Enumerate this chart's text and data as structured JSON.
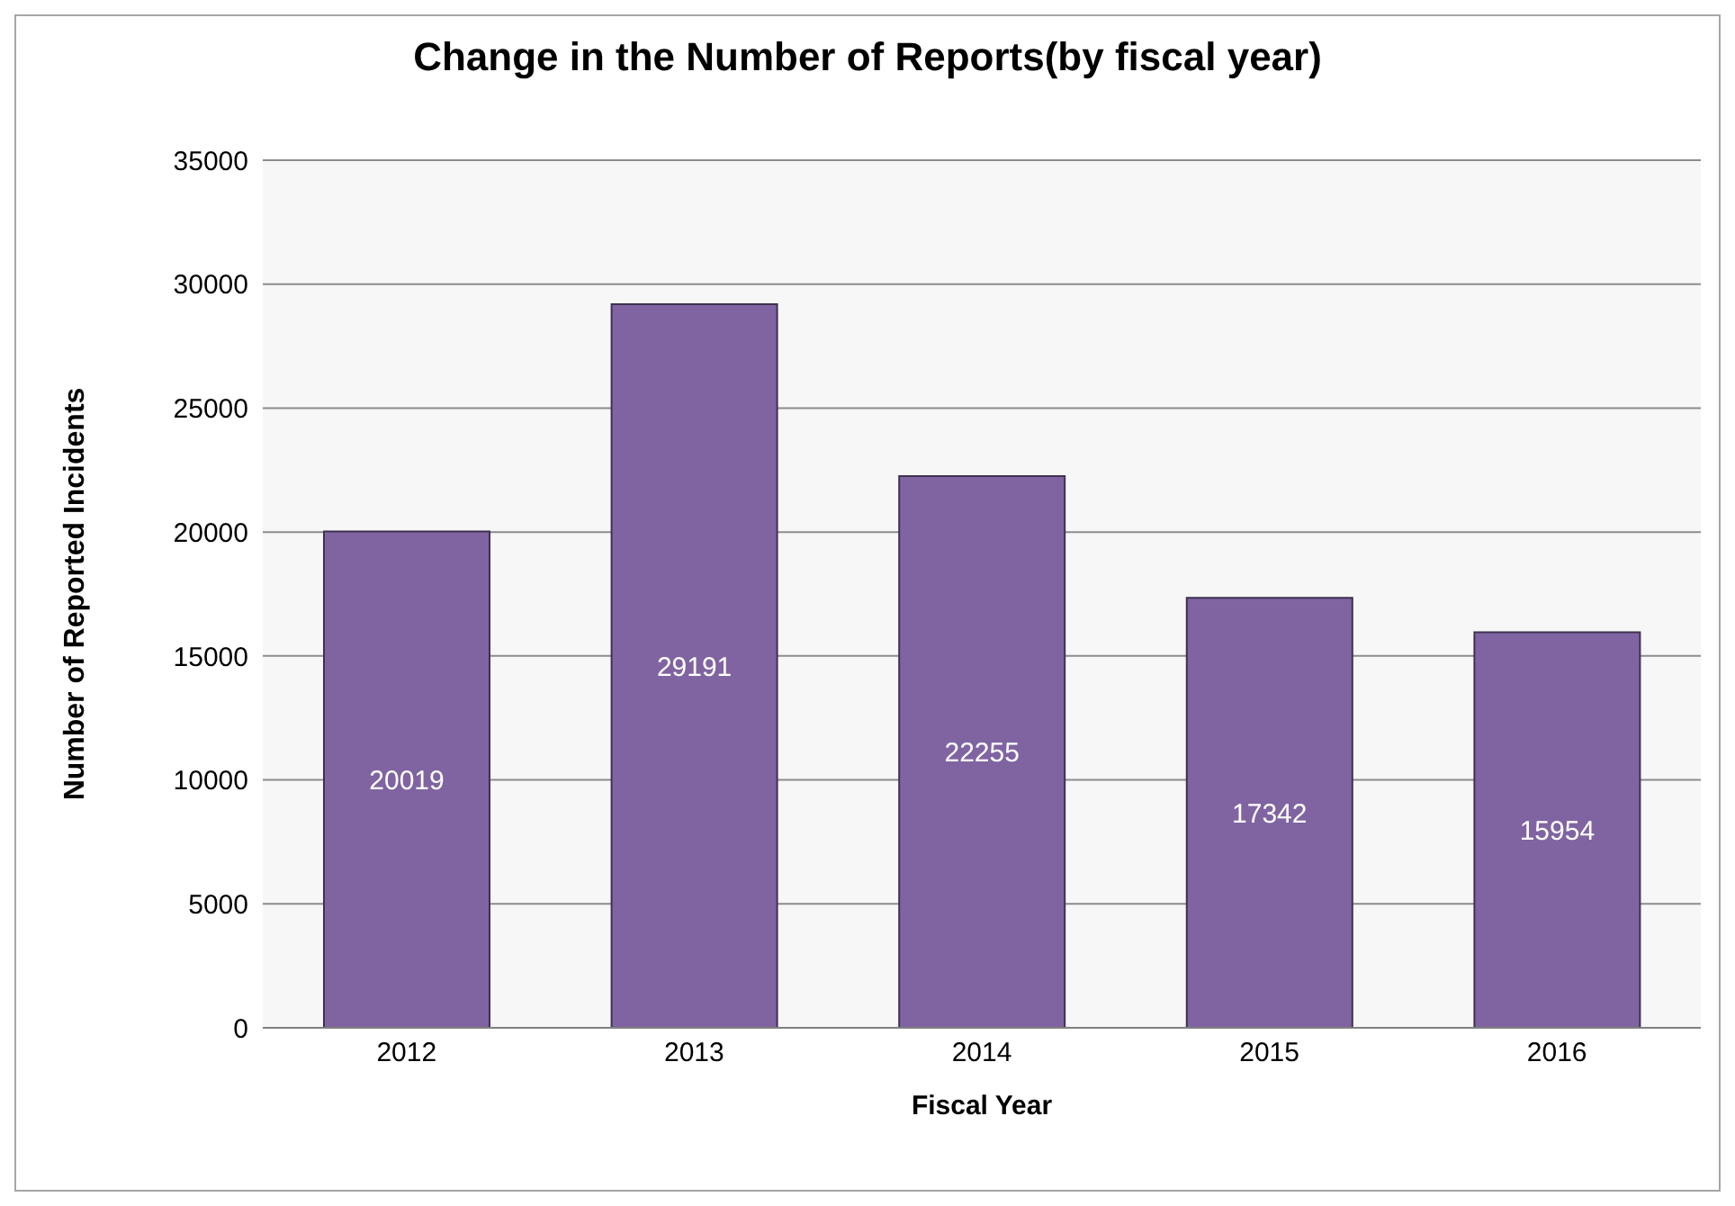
{
  "chart_data": {
    "type": "bar",
    "title": "Change in the Number of Reports(by fiscal year)",
    "xlabel": "Fiscal Year",
    "ylabel": "Number of Reported Incidents",
    "categories": [
      "2012",
      "2013",
      "2014",
      "2015",
      "2016"
    ],
    "values": [
      20019,
      29191,
      22255,
      17342,
      15954
    ],
    "color": "#8064a2",
    "ylim": [
      0,
      35000
    ],
    "yticks": [
      0,
      5000,
      10000,
      15000,
      20000,
      25000,
      30000,
      35000
    ],
    "grid": "y",
    "data_labels": true
  }
}
